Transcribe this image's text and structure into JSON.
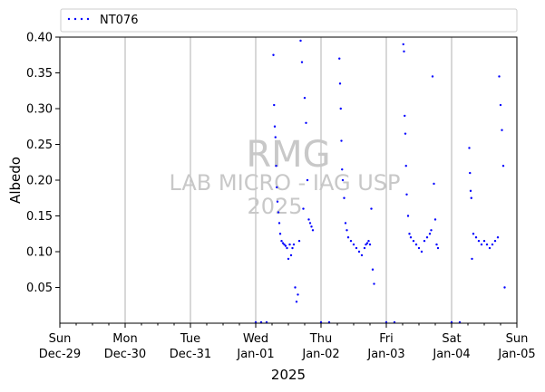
{
  "colors": {
    "series": "#0000ff",
    "grid": "#b0b0b0",
    "watermark": "#c8c8c8",
    "axis": "#000000"
  },
  "watermark": {
    "line1": "RMG",
    "line2": "LAB MICRO - IAG USP",
    "line3": "2025"
  },
  "chart_data": {
    "type": "scatter",
    "title": "",
    "xlabel": "2025",
    "ylabel": "Albedo",
    "xlim": [
      "2024-12-29",
      "2025-01-05"
    ],
    "ylim": [
      0.0,
      0.4
    ],
    "grid": "x-major-vertical",
    "legend": "top-outside",
    "x_ticks": [
      {
        "day": "Sun",
        "date": "Dec-29"
      },
      {
        "day": "Mon",
        "date": "Dec-30"
      },
      {
        "day": "Tue",
        "date": "Dec-31"
      },
      {
        "day": "Wed",
        "date": "Jan-01"
      },
      {
        "day": "Thu",
        "date": "Jan-02"
      },
      {
        "day": "Fri",
        "date": "Jan-03"
      },
      {
        "day": "Sat",
        "date": "Jan-04"
      },
      {
        "day": "Sun",
        "date": "Jan-05"
      }
    ],
    "y_ticks": [
      "0.05",
      "0.10",
      "0.15",
      "0.20",
      "0.25",
      "0.30",
      "0.35",
      "0.40"
    ],
    "series": [
      {
        "name": "NT076",
        "x": [
          "2025-01-01 00:00",
          "2025-01-01 02:00",
          "2025-01-01 04:00",
          "2025-01-01 06:30",
          "2025-01-01 06:45",
          "2025-01-01 07:00",
          "2025-01-01 07:15",
          "2025-01-01 07:30",
          "2025-01-01 07:45",
          "2025-01-01 08:00",
          "2025-01-01 08:20",
          "2025-01-01 08:40",
          "2025-01-01 09:00",
          "2025-01-01 09:30",
          "2025-01-01 10:00",
          "2025-01-01 10:30",
          "2025-01-01 11:00",
          "2025-01-01 11:30",
          "2025-01-01 12:00",
          "2025-01-01 12:30",
          "2025-01-01 13:00",
          "2025-01-01 13:30",
          "2025-01-01 14:00",
          "2025-01-01 14:30",
          "2025-01-01 15:00",
          "2025-01-01 15:30",
          "2025-01-01 16:00",
          "2025-01-01 16:30",
          "2025-01-01 17:00",
          "2025-01-01 17:30",
          "2025-01-01 18:00",
          "2025-01-01 18:30",
          "2025-01-01 19:00",
          "2025-01-01 19:30",
          "2025-01-01 20:00",
          "2025-01-01 20:30",
          "2025-01-01 21:00",
          "2025-01-02 00:00",
          "2025-01-02 03:00",
          "2025-01-02 06:45",
          "2025-01-02 07:00",
          "2025-01-02 07:15",
          "2025-01-02 07:30",
          "2025-01-02 07:45",
          "2025-01-02 08:00",
          "2025-01-02 08:30",
          "2025-01-02 09:00",
          "2025-01-02 09:30",
          "2025-01-02 10:00",
          "2025-01-02 11:00",
          "2025-01-02 12:00",
          "2025-01-02 13:00",
          "2025-01-02 14:00",
          "2025-01-02 15:00",
          "2025-01-02 16:00",
          "2025-01-02 16:30",
          "2025-01-02 17:00",
          "2025-01-02 17:30",
          "2025-01-02 18:00",
          "2025-01-02 18:30",
          "2025-01-02 19:00",
          "2025-01-02 19:30",
          "2025-01-03 00:00",
          "2025-01-03 03:00",
          "2025-01-03 06:15",
          "2025-01-03 06:30",
          "2025-01-03 06:45",
          "2025-01-03 07:00",
          "2025-01-03 07:15",
          "2025-01-03 07:30",
          "2025-01-03 08:00",
          "2025-01-03 08:30",
          "2025-01-03 09:00",
          "2025-01-03 10:00",
          "2025-01-03 11:00",
          "2025-01-03 12:00",
          "2025-01-03 13:00",
          "2025-01-03 14:00",
          "2025-01-03 15:00",
          "2025-01-03 16:00",
          "2025-01-03 16:30",
          "2025-01-03 17:00",
          "2025-01-03 17:30",
          "2025-01-03 18:00",
          "2025-01-03 18:30",
          "2025-01-03 19:00",
          "2025-01-04 00:00",
          "2025-01-04 03:00",
          "2025-01-04 06:30",
          "2025-01-04 06:45",
          "2025-01-04 07:00",
          "2025-01-04 07:15",
          "2025-01-04 07:30",
          "2025-01-04 08:00",
          "2025-01-04 09:00",
          "2025-01-04 10:00",
          "2025-01-04 11:00",
          "2025-01-04 12:00",
          "2025-01-04 13:00",
          "2025-01-04 14:00",
          "2025-01-04 15:00",
          "2025-01-04 16:00",
          "2025-01-04 17:00",
          "2025-01-04 17:30",
          "2025-01-04 18:00",
          "2025-01-04 18:30",
          "2025-01-04 19:00",
          "2025-01-04 19:30"
        ],
        "y": [
          0.0,
          0.0,
          0.0,
          0.375,
          0.305,
          0.275,
          0.26,
          0.22,
          0.19,
          0.17,
          0.155,
          0.14,
          0.125,
          0.115,
          0.112,
          0.11,
          0.108,
          0.105,
          0.09,
          0.11,
          0.095,
          0.105,
          0.11,
          0.05,
          0.03,
          0.04,
          0.115,
          0.395,
          0.365,
          0.16,
          0.315,
          0.28,
          0.2,
          0.145,
          0.14,
          0.135,
          0.13,
          0.0,
          0.0,
          0.37,
          0.335,
          0.3,
          0.255,
          0.215,
          0.2,
          0.175,
          0.14,
          0.13,
          0.12,
          0.115,
          0.11,
          0.105,
          0.1,
          0.095,
          0.105,
          0.11,
          0.112,
          0.115,
          0.11,
          0.16,
          0.075,
          0.055,
          0.0,
          0.0,
          0.39,
          0.38,
          0.29,
          0.265,
          0.22,
          0.18,
          0.15,
          0.125,
          0.12,
          0.115,
          0.11,
          0.105,
          0.1,
          0.115,
          0.12,
          0.125,
          0.13,
          0.345,
          0.195,
          0.145,
          0.11,
          0.105,
          0.0,
          0.0,
          0.245,
          0.21,
          0.185,
          0.175,
          0.09,
          0.125,
          0.12,
          0.115,
          0.11,
          0.115,
          0.11,
          0.105,
          0.11,
          0.115,
          0.12,
          0.345,
          0.305,
          0.27,
          0.22,
          0.05
        ]
      }
    ]
  }
}
